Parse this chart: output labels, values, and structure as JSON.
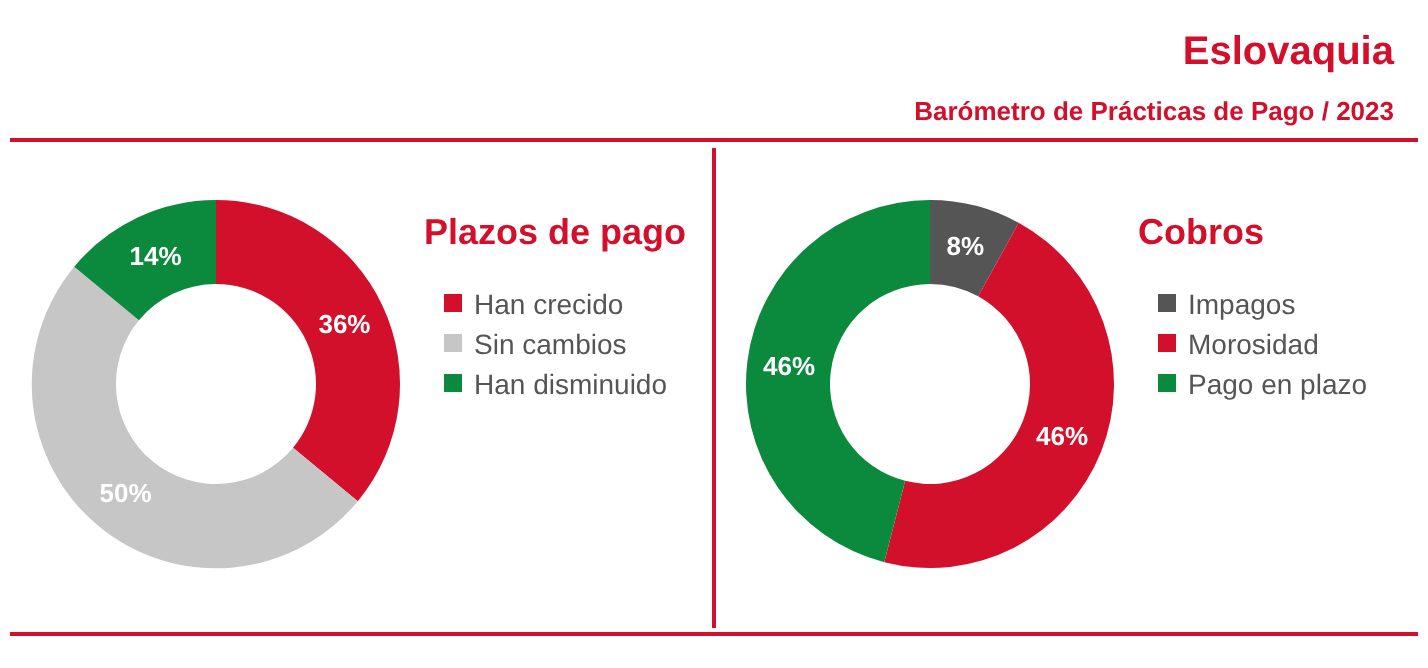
{
  "chart_data": [
    {
      "type": "other",
      "title": "Eslovaquia",
      "subtitle": "Barómetro de Prácticas de Pago / 2023"
    },
    {
      "type": "donut",
      "title": "Plazos de pago",
      "categories": [
        "Han crecido",
        "Sin cambios",
        "Han disminuido"
      ],
      "values": [
        36,
        50,
        14
      ],
      "colors": [
        "#d2102c",
        "#c6c6c6",
        "#0b8a3d"
      ],
      "value_labels": [
        "36%",
        "50%",
        "14%"
      ],
      "legend": "right"
    },
    {
      "type": "donut",
      "title": "Cobros",
      "categories": [
        "Impagos",
        "Morosidad",
        "Pago en plazo"
      ],
      "values": [
        8,
        46,
        46
      ],
      "colors": [
        "#555555",
        "#d2102c",
        "#0b8a3d"
      ],
      "value_labels": [
        "8%",
        "46%",
        "46%"
      ],
      "legend": "right"
    }
  ]
}
